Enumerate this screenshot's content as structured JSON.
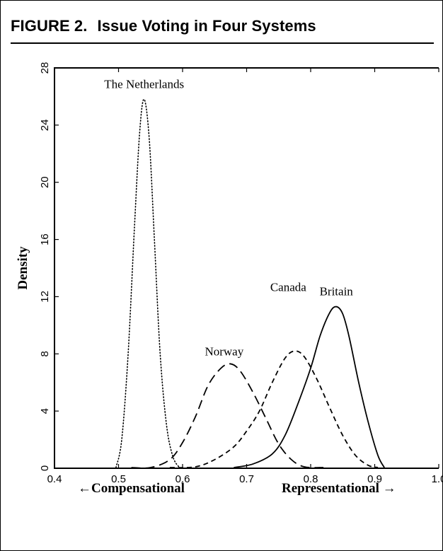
{
  "figure": {
    "label": "FIGURE 2.",
    "title": "Issue Voting in Four Systems"
  },
  "axis_direction": {
    "left": "←Compensational",
    "right": "Representational →"
  },
  "chart_data": {
    "type": "line",
    "title": "",
    "xlabel": "",
    "ylabel": "Density",
    "xlim": [
      0.4,
      1.0
    ],
    "ylim": [
      0,
      28
    ],
    "x_ticks": [
      0.4,
      0.5,
      0.6,
      0.7,
      0.8,
      0.9,
      1.0
    ],
    "x_tick_labels": [
      "0.4",
      "0.5",
      "0.6",
      "0.7",
      "0.8",
      "0.9",
      "1.0"
    ],
    "y_ticks": [
      0,
      4,
      8,
      12,
      16,
      20,
      24,
      28
    ],
    "y_tick_labels": [
      "0",
      "4",
      "8",
      "12",
      "16",
      "20",
      "24",
      "28"
    ],
    "grid": false,
    "legend": "none",
    "series": [
      {
        "name": "The Netherlands",
        "style": "dotted",
        "x": [
          0.496,
          0.505,
          0.515,
          0.525,
          0.533,
          0.54,
          0.548,
          0.556,
          0.565,
          0.575,
          0.585,
          0.595
        ],
        "y": [
          0.0,
          2.0,
          8.0,
          17.0,
          23.5,
          25.8,
          23.0,
          16.0,
          8.0,
          3.0,
          0.8,
          0.0
        ]
      },
      {
        "name": "Norway",
        "style": "long-dash",
        "x": [
          0.52,
          0.55,
          0.58,
          0.6,
          0.62,
          0.64,
          0.66,
          0.675,
          0.69,
          0.71,
          0.73,
          0.75,
          0.77,
          0.79,
          0.82
        ],
        "y": [
          0.0,
          0.0,
          0.6,
          1.8,
          3.6,
          5.8,
          7.0,
          7.3,
          6.8,
          5.3,
          3.5,
          1.7,
          0.6,
          0.1,
          0.0
        ]
      },
      {
        "name": "Canada",
        "style": "short-dash",
        "x": [
          0.58,
          0.62,
          0.65,
          0.68,
          0.7,
          0.72,
          0.74,
          0.76,
          0.775,
          0.79,
          0.81,
          0.83,
          0.85,
          0.87,
          0.89,
          0.905
        ],
        "y": [
          0.0,
          0.1,
          0.6,
          1.5,
          2.6,
          4.0,
          6.0,
          7.7,
          8.2,
          7.8,
          6.2,
          4.2,
          2.3,
          0.9,
          0.2,
          0.0
        ]
      },
      {
        "name": "Britain",
        "style": "solid",
        "x": [
          0.68,
          0.71,
          0.74,
          0.76,
          0.78,
          0.8,
          0.815,
          0.83,
          0.84,
          0.85,
          0.86,
          0.875,
          0.89,
          0.905,
          0.915
        ],
        "y": [
          0.0,
          0.3,
          1.0,
          2.3,
          4.5,
          7.0,
          9.3,
          10.9,
          11.3,
          10.8,
          9.2,
          6.0,
          3.2,
          0.9,
          0.0
        ]
      }
    ],
    "annotations": [
      {
        "text": "The Netherlands",
        "series": "The Netherlands",
        "x": 0.54,
        "y": 26.6
      },
      {
        "text": "Norway",
        "series": "Norway",
        "x": 0.665,
        "y": 7.9
      },
      {
        "text": "Canada",
        "series": "Canada",
        "x": 0.765,
        "y": 12.4
      },
      {
        "text": "Britain",
        "series": "Britain",
        "x": 0.84,
        "y": 12.1
      }
    ]
  }
}
